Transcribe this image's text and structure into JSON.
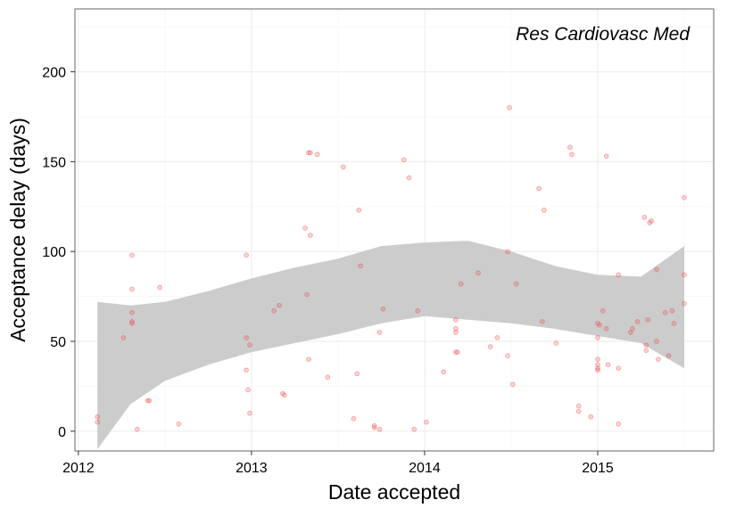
{
  "chart_data": {
    "type": "scatter",
    "title": "",
    "annotation": "Res Cardiovasc Med",
    "xlabel": "Date accepted",
    "ylabel": "Acceptance delay (days)",
    "xlim": [
      2011.98,
      2015.67
    ],
    "ylim": [
      -11,
      235
    ],
    "x_ticks": [
      2012,
      2013,
      2014,
      2015
    ],
    "x_tick_labels": [
      "2012",
      "2013",
      "2014",
      "2015"
    ],
    "y_ticks": [
      0,
      50,
      100,
      150,
      200
    ],
    "y_tick_labels": [
      "0",
      "50",
      "100",
      "150",
      "200"
    ],
    "grid": true,
    "legend": "none",
    "colors": {
      "points": "#e8413a",
      "ribbon": "#cccccc",
      "grid": "#ebebeb",
      "border": "#7f7f7f"
    },
    "series": [
      {
        "points": [
          [
            2012.11,
            5
          ],
          [
            2012.11,
            8
          ],
          [
            2012.26,
            52
          ],
          [
            2012.31,
            98
          ],
          [
            2012.31,
            79
          ],
          [
            2012.31,
            66
          ],
          [
            2012.31,
            61
          ],
          [
            2012.31,
            60
          ],
          [
            2012.34,
            1
          ],
          [
            2012.4,
            17
          ],
          [
            2012.41,
            17
          ],
          [
            2012.47,
            80
          ],
          [
            2012.58,
            4
          ],
          [
            2012.97,
            98
          ],
          [
            2012.97,
            52
          ],
          [
            2012.97,
            34
          ],
          [
            2012.98,
            23
          ],
          [
            2012.99,
            10
          ],
          [
            2012.99,
            48
          ],
          [
            2013.13,
            67
          ],
          [
            2013.16,
            70
          ],
          [
            2013.18,
            21
          ],
          [
            2013.19,
            20
          ],
          [
            2013.31,
            113
          ],
          [
            2013.32,
            76
          ],
          [
            2013.33,
            40
          ],
          [
            2013.33,
            155
          ],
          [
            2013.34,
            155
          ],
          [
            2013.34,
            109
          ],
          [
            2013.38,
            154
          ],
          [
            2013.44,
            30
          ],
          [
            2013.53,
            147
          ],
          [
            2013.59,
            7
          ],
          [
            2013.61,
            32
          ],
          [
            2013.62,
            123
          ],
          [
            2013.63,
            92
          ],
          [
            2013.71,
            3
          ],
          [
            2013.71,
            2
          ],
          [
            2013.74,
            1
          ],
          [
            2013.74,
            55
          ],
          [
            2013.76,
            68
          ],
          [
            2013.88,
            151
          ],
          [
            2013.91,
            141
          ],
          [
            2013.94,
            1
          ],
          [
            2013.96,
            67
          ],
          [
            2014.01,
            5
          ],
          [
            2014.11,
            33
          ],
          [
            2014.18,
            62
          ],
          [
            2014.18,
            57
          ],
          [
            2014.18,
            55
          ],
          [
            2014.18,
            44
          ],
          [
            2014.19,
            44
          ],
          [
            2014.21,
            82
          ],
          [
            2014.31,
            88
          ],
          [
            2014.38,
            47
          ],
          [
            2014.42,
            52
          ],
          [
            2014.48,
            42
          ],
          [
            2014.48,
            100
          ],
          [
            2014.49,
            180
          ],
          [
            2014.51,
            26
          ],
          [
            2014.53,
            82
          ],
          [
            2014.66,
            135
          ],
          [
            2014.68,
            61
          ],
          [
            2014.69,
            123
          ],
          [
            2014.76,
            49
          ],
          [
            2014.84,
            158
          ],
          [
            2014.85,
            154
          ],
          [
            2014.89,
            14
          ],
          [
            2014.89,
            11
          ],
          [
            2014.96,
            8
          ],
          [
            2015.0,
            60
          ],
          [
            2015.0,
            52
          ],
          [
            2015.0,
            40
          ],
          [
            2015.0,
            37
          ],
          [
            2015.0,
            35
          ],
          [
            2015.0,
            34
          ],
          [
            2015.01,
            59
          ],
          [
            2015.03,
            67
          ],
          [
            2015.05,
            153
          ],
          [
            2015.05,
            57
          ],
          [
            2015.06,
            37
          ],
          [
            2015.12,
            87
          ],
          [
            2015.12,
            35
          ],
          [
            2015.12,
            4
          ],
          [
            2015.19,
            55
          ],
          [
            2015.2,
            57
          ],
          [
            2015.23,
            61
          ],
          [
            2015.27,
            119
          ],
          [
            2015.28,
            48
          ],
          [
            2015.28,
            45
          ],
          [
            2015.29,
            62
          ],
          [
            2015.3,
            116
          ],
          [
            2015.31,
            117
          ],
          [
            2015.34,
            90
          ],
          [
            2015.34,
            50
          ],
          [
            2015.35,
            40
          ],
          [
            2015.39,
            66
          ],
          [
            2015.41,
            42
          ],
          [
            2015.43,
            67
          ],
          [
            2015.44,
            60
          ],
          [
            2015.5,
            130
          ],
          [
            2015.5,
            87
          ],
          [
            2015.5,
            71
          ]
        ]
      }
    ],
    "ribbon": {
      "x": [
        2012.11,
        2012.3,
        2012.5,
        2012.75,
        2013.0,
        2013.25,
        2013.5,
        2013.75,
        2014.0,
        2014.25,
        2014.5,
        2014.75,
        2015.0,
        2015.25,
        2015.5
      ],
      "upper": [
        72,
        70,
        72,
        78,
        85,
        91,
        96,
        103,
        105,
        106,
        100,
        92,
        87,
        86,
        103
      ],
      "lower": [
        -10,
        15,
        28,
        37,
        44,
        49,
        54,
        60,
        64,
        62,
        60,
        57,
        53,
        49,
        35
      ]
    }
  }
}
